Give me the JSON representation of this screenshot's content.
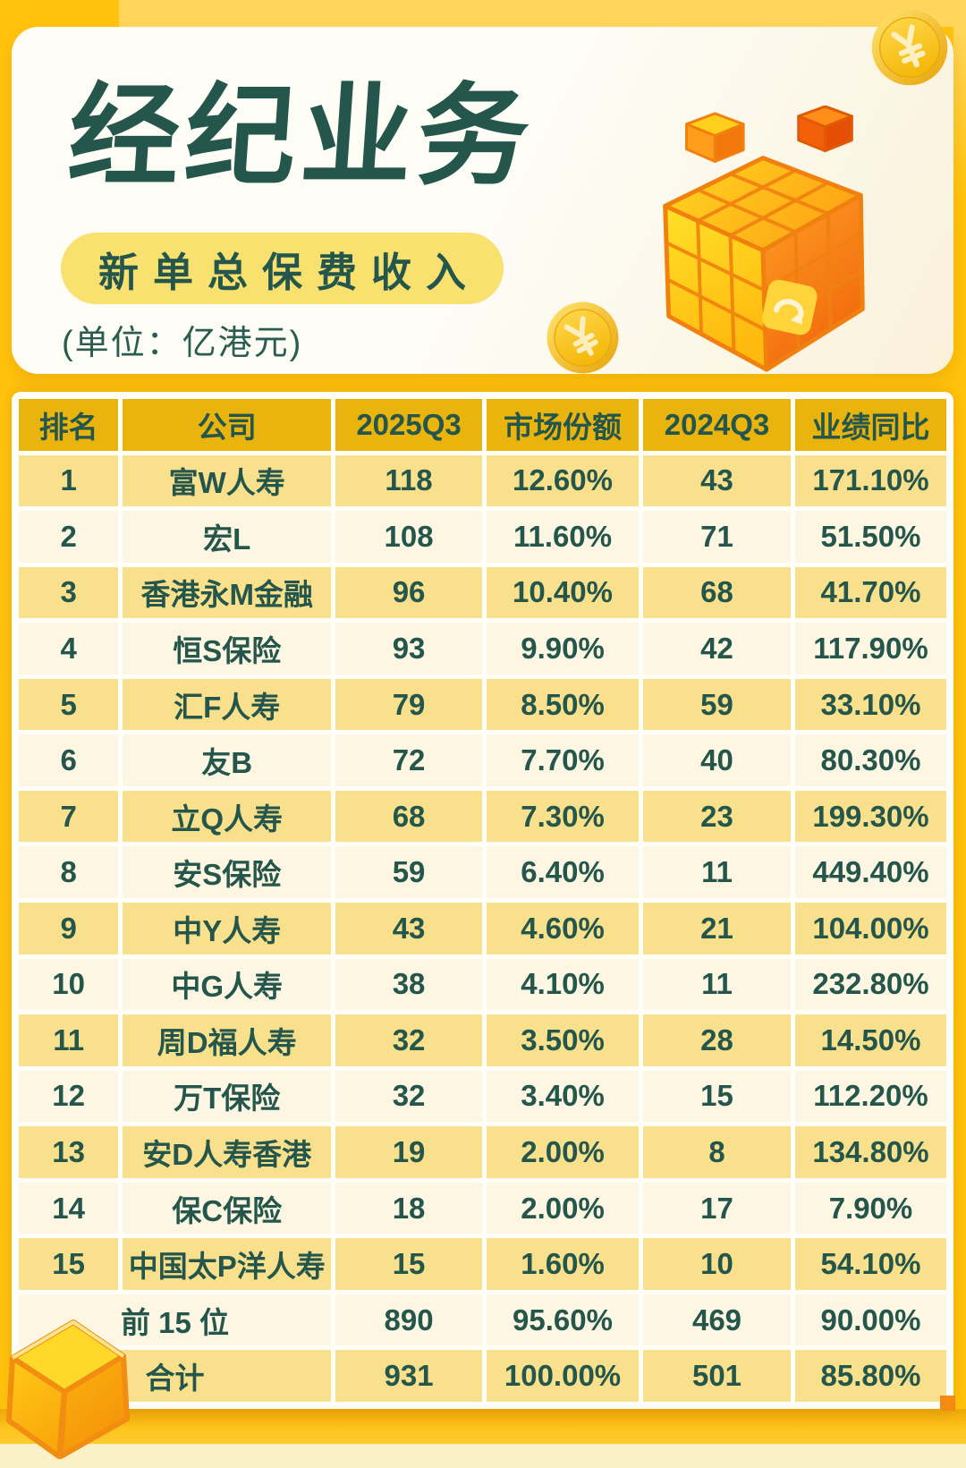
{
  "header": {
    "title": "经纪业务",
    "subtitle_badge": "新单总保费收入",
    "unit_note": "(单位：亿港元)"
  },
  "table": {
    "headers": [
      "排名",
      "公司",
      "2025Q3",
      "市场份额",
      "2024Q3",
      "业绩同比"
    ],
    "rows": [
      [
        "1",
        "富W人寿",
        "118",
        "12.60%",
        "43",
        "171.10%"
      ],
      [
        "2",
        "宏L",
        "108",
        "11.60%",
        "71",
        "51.50%"
      ],
      [
        "3",
        "香港永M金融",
        "96",
        "10.40%",
        "68",
        "41.70%"
      ],
      [
        "4",
        "恒S保险",
        "93",
        "9.90%",
        "42",
        "117.90%"
      ],
      [
        "5",
        "汇F人寿",
        "79",
        "8.50%",
        "59",
        "33.10%"
      ],
      [
        "6",
        "友B",
        "72",
        "7.70%",
        "40",
        "80.30%"
      ],
      [
        "7",
        "立Q人寿",
        "68",
        "7.30%",
        "23",
        "199.30%"
      ],
      [
        "8",
        "安S保险",
        "59",
        "6.40%",
        "11",
        "449.40%"
      ],
      [
        "9",
        "中Y人寿",
        "43",
        "4.60%",
        "21",
        "104.00%"
      ],
      [
        "10",
        "中G人寿",
        "38",
        "4.10%",
        "11",
        "232.80%"
      ],
      [
        "11",
        "周D福人寿",
        "32",
        "3.50%",
        "28",
        "14.50%"
      ],
      [
        "12",
        "万T保险",
        "32",
        "3.40%",
        "15",
        "112.20%"
      ],
      [
        "13",
        "安D人寿香港",
        "19",
        "2.00%",
        "8",
        "134.80%"
      ],
      [
        "14",
        "保C保险",
        "18",
        "2.00%",
        "17",
        "7.90%"
      ],
      [
        "15",
        "中国太P洋人寿",
        "15",
        "1.60%",
        "10",
        "54.10%"
      ]
    ],
    "summary": [
      {
        "label": "前 15 位",
        "values": [
          "890",
          "95.60%",
          "469",
          "90.00%"
        ]
      },
      {
        "label": "合计",
        "values": [
          "931",
          "100.00%",
          "501",
          "85.80%"
        ]
      }
    ]
  },
  "chart_data": {
    "type": "table",
    "title": "经纪业务 新单总保费收入",
    "unit": "亿港元",
    "columns": [
      "排名",
      "公司",
      "2025Q3",
      "市场份额",
      "2024Q3",
      "业绩同比"
    ],
    "rows": [
      [
        1,
        "富W人寿",
        118,
        "12.60%",
        43,
        "171.10%"
      ],
      [
        2,
        "宏L",
        108,
        "11.60%",
        71,
        "51.50%"
      ],
      [
        3,
        "香港永M金融",
        96,
        "10.40%",
        68,
        "41.70%"
      ],
      [
        4,
        "恒S保险",
        93,
        "9.90%",
        42,
        "117.90%"
      ],
      [
        5,
        "汇F人寿",
        79,
        "8.50%",
        59,
        "33.10%"
      ],
      [
        6,
        "友B",
        72,
        "7.70%",
        40,
        "80.30%"
      ],
      [
        7,
        "立Q人寿",
        68,
        "7.30%",
        23,
        "199.30%"
      ],
      [
        8,
        "安S保险",
        59,
        "6.40%",
        11,
        "449.40%"
      ],
      [
        9,
        "中Y人寿",
        43,
        "4.60%",
        21,
        "104.00%"
      ],
      [
        10,
        "中G人寿",
        38,
        "4.10%",
        11,
        "232.80%"
      ],
      [
        11,
        "周D福人寿",
        32,
        "3.50%",
        28,
        "14.50%"
      ],
      [
        12,
        "万T保险",
        32,
        "3.40%",
        15,
        "112.20%"
      ],
      [
        13,
        "安D人寿香港",
        19,
        "2.00%",
        8,
        "134.80%"
      ],
      [
        14,
        "保C保险",
        18,
        "2.00%",
        17,
        "7.90%"
      ],
      [
        15,
        "中国太P洋人寿",
        15,
        "1.60%",
        10,
        "54.10%"
      ]
    ],
    "totals": [
      [
        "前 15 位",
        890,
        "95.60%",
        469,
        "90.00%"
      ],
      [
        "合计",
        931,
        "100.00%",
        501,
        "85.80%"
      ]
    ]
  },
  "colors": {
    "background_gold": "#FFC30D",
    "light_gold": "#FFD65B",
    "card_cream": "#FDFBF2",
    "teal_text": "#24564C",
    "header_cell_gold": "#E9B40D",
    "row_yellow": "#F8E08C",
    "row_cream": "#FDF6E3",
    "pill_yellow": "#F9E170",
    "accent_orange": "#F28A14"
  }
}
